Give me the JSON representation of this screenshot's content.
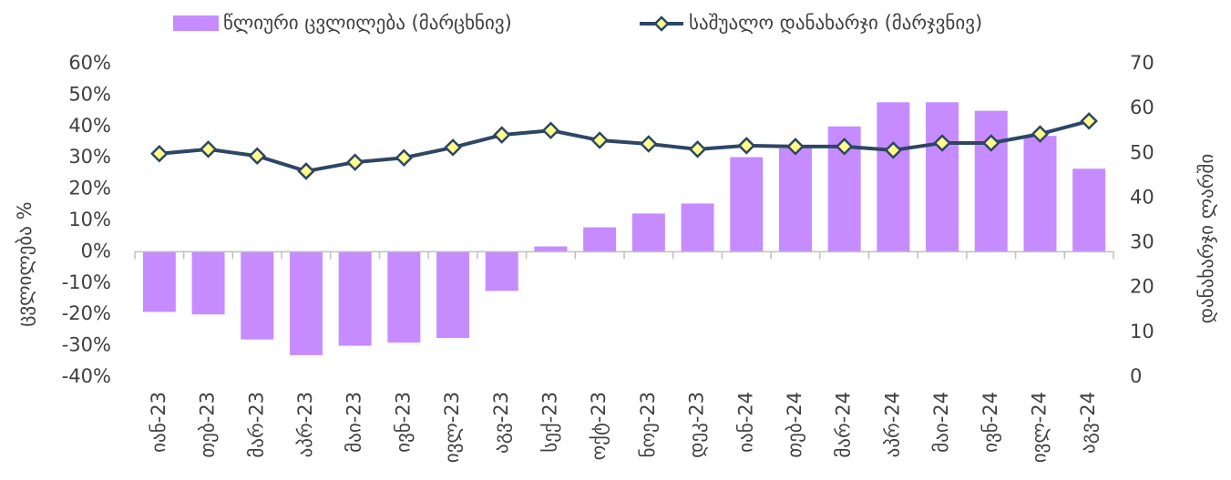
{
  "chart_data": {
    "type": "bar-line",
    "categories": [
      "იან-23",
      "თებ-23",
      "მარ-23",
      "აპრ-23",
      "მაი-23",
      "ივნ-23",
      "ივლ-23",
      "აგვ-23",
      "სექ-23",
      "ოქტ-23",
      "ნოე-23",
      "დეკ-23",
      "იან-24",
      "თებ-24",
      "მარ-24",
      "აპრ-24",
      "მაი-24",
      "ივნ-24",
      "ივლ-24",
      "აგვ-24"
    ],
    "series": [
      {
        "name": "წლიური ცვლილება (მარცხნივ)",
        "type": "bar",
        "color": "#c68cff",
        "values": [
          -19.2,
          -20,
          -28,
          -33,
          -30,
          -29,
          -27.5,
          -12.5,
          1.7,
          7.8,
          12.2,
          15.4,
          30.2,
          33,
          40,
          47.7,
          47.7,
          45,
          37,
          26.5
        ]
      },
      {
        "name": "საშუალო დანახარჯი (მარჯვნივ)",
        "type": "line",
        "axis": "y2",
        "color": "#2e4665",
        "marker_color": "#ffff8a",
        "values": [
          49.9,
          50.9,
          49.4,
          46,
          48,
          49,
          51.3,
          54.1,
          55.1,
          52.9,
          52.1,
          50.9,
          51.7,
          51.5,
          51.5,
          50.7,
          52.3,
          52.3,
          54.3,
          57.2
        ]
      }
    ],
    "ylabel": "ცვლილება %",
    "y2label": "დანახარჯი ლარში",
    "ylim": [
      -40,
      60
    ],
    "yticks": [
      {
        "value": -40,
        "label": "-40%"
      },
      {
        "value": -30,
        "label": "-30%"
      },
      {
        "value": -20,
        "label": "-20%"
      },
      {
        "value": -10,
        "label": "-10%"
      },
      {
        "value": 0,
        "label": "0%"
      },
      {
        "value": 10,
        "label": "10%"
      },
      {
        "value": 20,
        "label": "20%"
      },
      {
        "value": 30,
        "label": "30%"
      },
      {
        "value": 40,
        "label": "40%"
      },
      {
        "value": 50,
        "label": "50%"
      },
      {
        "value": 60,
        "label": "60%"
      }
    ],
    "y2lim": [
      0,
      70
    ],
    "y2ticks": [
      0,
      10,
      20,
      30,
      40,
      50,
      60,
      70
    ],
    "legend": "top",
    "grid": false
  }
}
